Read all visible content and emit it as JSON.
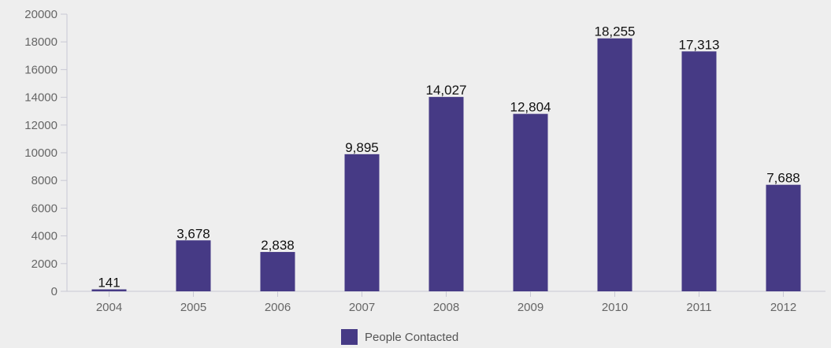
{
  "chart_data": {
    "type": "bar",
    "title": "",
    "xlabel": "",
    "ylabel": "",
    "categories": [
      "2004",
      "2005",
      "2006",
      "2007",
      "2008",
      "2009",
      "2010",
      "2011",
      "2012"
    ],
    "series": [
      {
        "name": "People Contacted",
        "values": [
          141,
          3678,
          2838,
          9895,
          14027,
          12804,
          18255,
          17313,
          7688
        ],
        "labels": [
          "141",
          "3,678",
          "2,838",
          "9,895",
          "14,027",
          "12,804",
          "18,255",
          "17,313",
          "7,688"
        ],
        "color": "#463a85"
      }
    ],
    "ylim": [
      0,
      20000
    ],
    "yticks": [
      "0",
      "2000",
      "4000",
      "6000",
      "8000",
      "10000",
      "12000",
      "14000",
      "16000",
      "18000",
      "20000"
    ],
    "grid": false,
    "legend_position": "bottom"
  },
  "colors": {
    "background": "#eeeeee",
    "bar": "#463a85",
    "axis": "#c8c8d4",
    "tick_text": "#666666",
    "label_text": "#111111"
  }
}
